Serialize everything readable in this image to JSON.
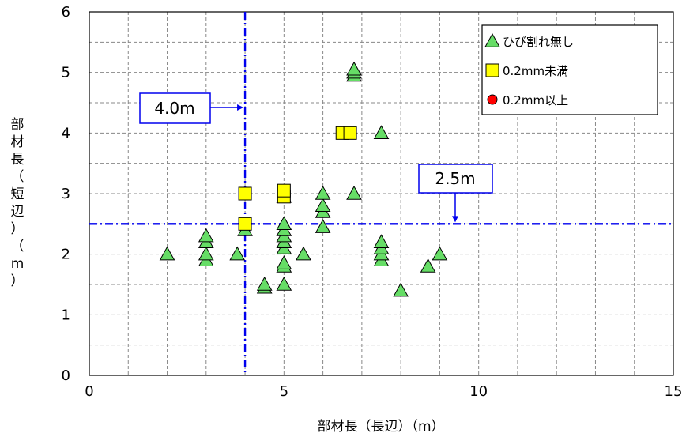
{
  "chart_data": {
    "type": "scatter",
    "xlabel": "部材長（長辺）（m）",
    "ylabel": "部材長（短辺）（m）",
    "xlim": [
      0,
      15
    ],
    "ylim": [
      0,
      6
    ],
    "x_ticks": [
      "0",
      "5",
      "10",
      "15"
    ],
    "y_ticks": [
      "0",
      "1",
      "2",
      "3",
      "4",
      "5",
      "6"
    ],
    "grid": true,
    "legend_position": "top-right",
    "series": [
      {
        "name": "ひび割れ無し",
        "marker": "triangle",
        "color": "#66dd66",
        "points": [
          [
            2.0,
            2.0
          ],
          [
            3.0,
            1.9
          ],
          [
            3.0,
            2.0
          ],
          [
            3.0,
            2.2
          ],
          [
            3.0,
            2.3
          ],
          [
            3.8,
            2.0
          ],
          [
            4.0,
            2.4
          ],
          [
            4.5,
            1.45
          ],
          [
            4.5,
            1.5
          ],
          [
            5.0,
            1.5
          ],
          [
            5.0,
            1.8
          ],
          [
            5.0,
            1.85
          ],
          [
            5.0,
            2.1
          ],
          [
            5.0,
            2.2
          ],
          [
            5.0,
            2.3
          ],
          [
            5.0,
            2.4
          ],
          [
            5.0,
            2.5
          ],
          [
            5.0,
            2.95
          ],
          [
            5.5,
            2.0
          ],
          [
            6.0,
            2.45
          ],
          [
            6.0,
            2.7
          ],
          [
            6.0,
            2.8
          ],
          [
            6.0,
            3.0
          ],
          [
            6.8,
            3.0
          ],
          [
            6.8,
            4.95
          ],
          [
            6.8,
            5.0
          ],
          [
            6.8,
            5.05
          ],
          [
            7.5,
            1.9
          ],
          [
            7.5,
            2.0
          ],
          [
            7.5,
            2.1
          ],
          [
            7.5,
            2.2
          ],
          [
            7.5,
            4.0
          ],
          [
            8.0,
            1.4
          ],
          [
            8.7,
            1.8
          ],
          [
            9.0,
            2.0
          ]
        ]
      },
      {
        "name": "0.2mm未満",
        "marker": "square",
        "color": "#ffff00",
        "points": [
          [
            4.0,
            2.5
          ],
          [
            4.0,
            3.0
          ],
          [
            5.0,
            2.95
          ],
          [
            5.0,
            3.05
          ],
          [
            6.5,
            4.0
          ],
          [
            6.7,
            4.0
          ]
        ]
      },
      {
        "name": "0.2mm以上",
        "marker": "circle",
        "color": "#ff0000",
        "points": []
      }
    ],
    "reference_lines": [
      {
        "axis": "x",
        "value": 4.0,
        "label": "4.0m",
        "color": "#0000ee"
      },
      {
        "axis": "y",
        "value": 2.5,
        "label": "2.5m",
        "color": "#0000ee"
      }
    ]
  }
}
